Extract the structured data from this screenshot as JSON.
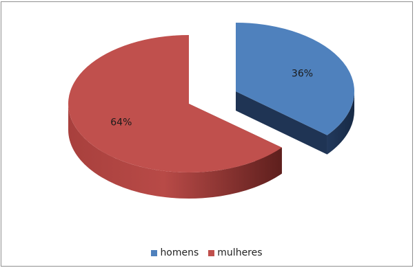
{
  "chart_data": {
    "type": "pie",
    "style": "3d-exploded",
    "categories": [
      "homens",
      "mulheres"
    ],
    "values": [
      36,
      64
    ],
    "data_labels": [
      "36%",
      "64%"
    ],
    "colors": [
      "#4f81bd",
      "#c0504d"
    ],
    "side_colors": [
      "#1f3454",
      "#6b2422"
    ],
    "legend_position": "bottom",
    "title": ""
  },
  "legend": {
    "items": [
      {
        "label": "homens",
        "color": "#4f81bd"
      },
      {
        "label": "mulheres",
        "color": "#c0504d"
      }
    ]
  }
}
